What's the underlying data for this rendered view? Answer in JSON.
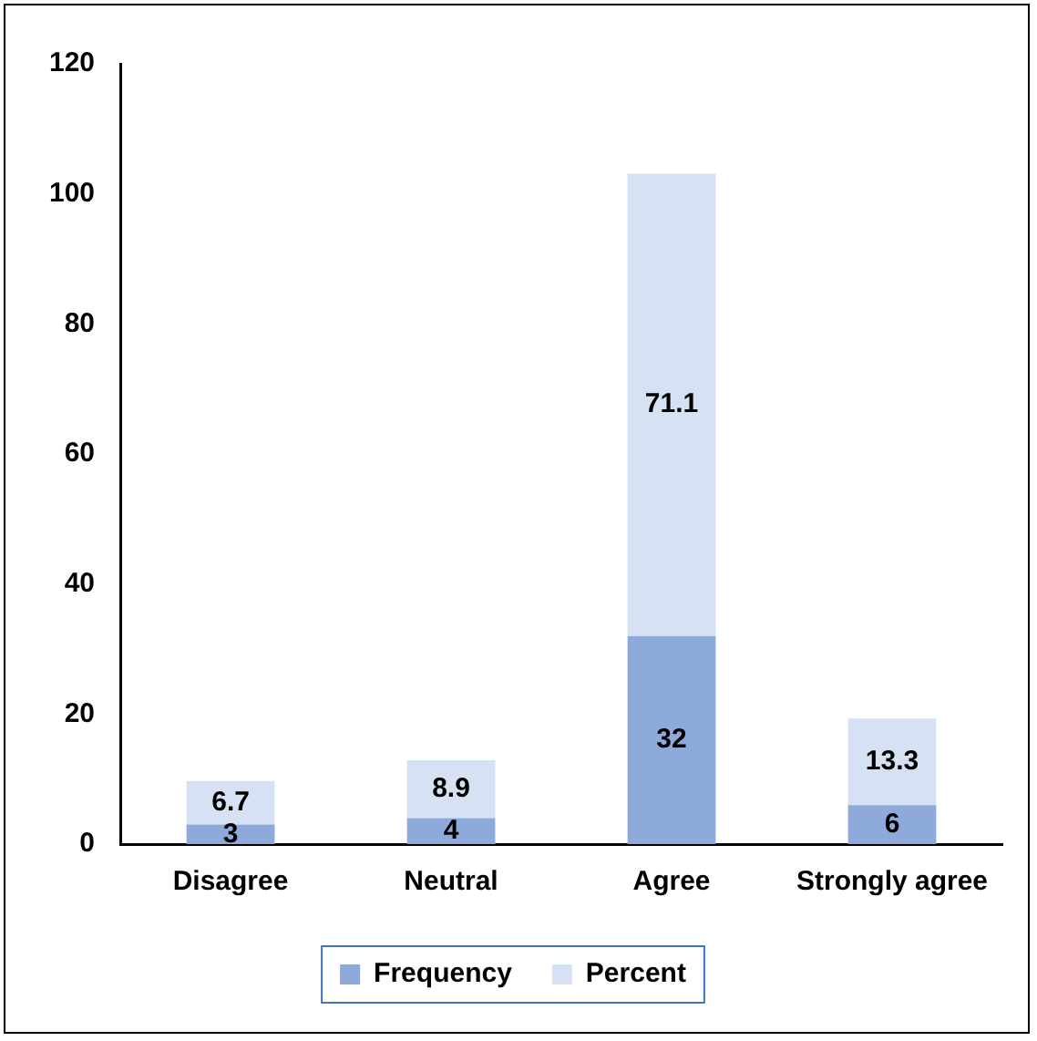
{
  "chart_data": {
    "type": "bar",
    "stacked": true,
    "categories": [
      "Disagree",
      "Neutral",
      "Agree",
      "Strongly agree"
    ],
    "series": [
      {
        "name": "Frequency",
        "color": "#8eaadb",
        "values": [
          3,
          4,
          32,
          6
        ]
      },
      {
        "name": "Percent",
        "color": "#d6e2f3",
        "values": [
          6.7,
          8.9,
          71.1,
          13.3
        ]
      }
    ],
    "ylim": [
      0,
      120
    ],
    "yticks": [
      0,
      20,
      40,
      60,
      80,
      100,
      120
    ],
    "grid": false,
    "legend": "bottom",
    "data_labels": true
  }
}
